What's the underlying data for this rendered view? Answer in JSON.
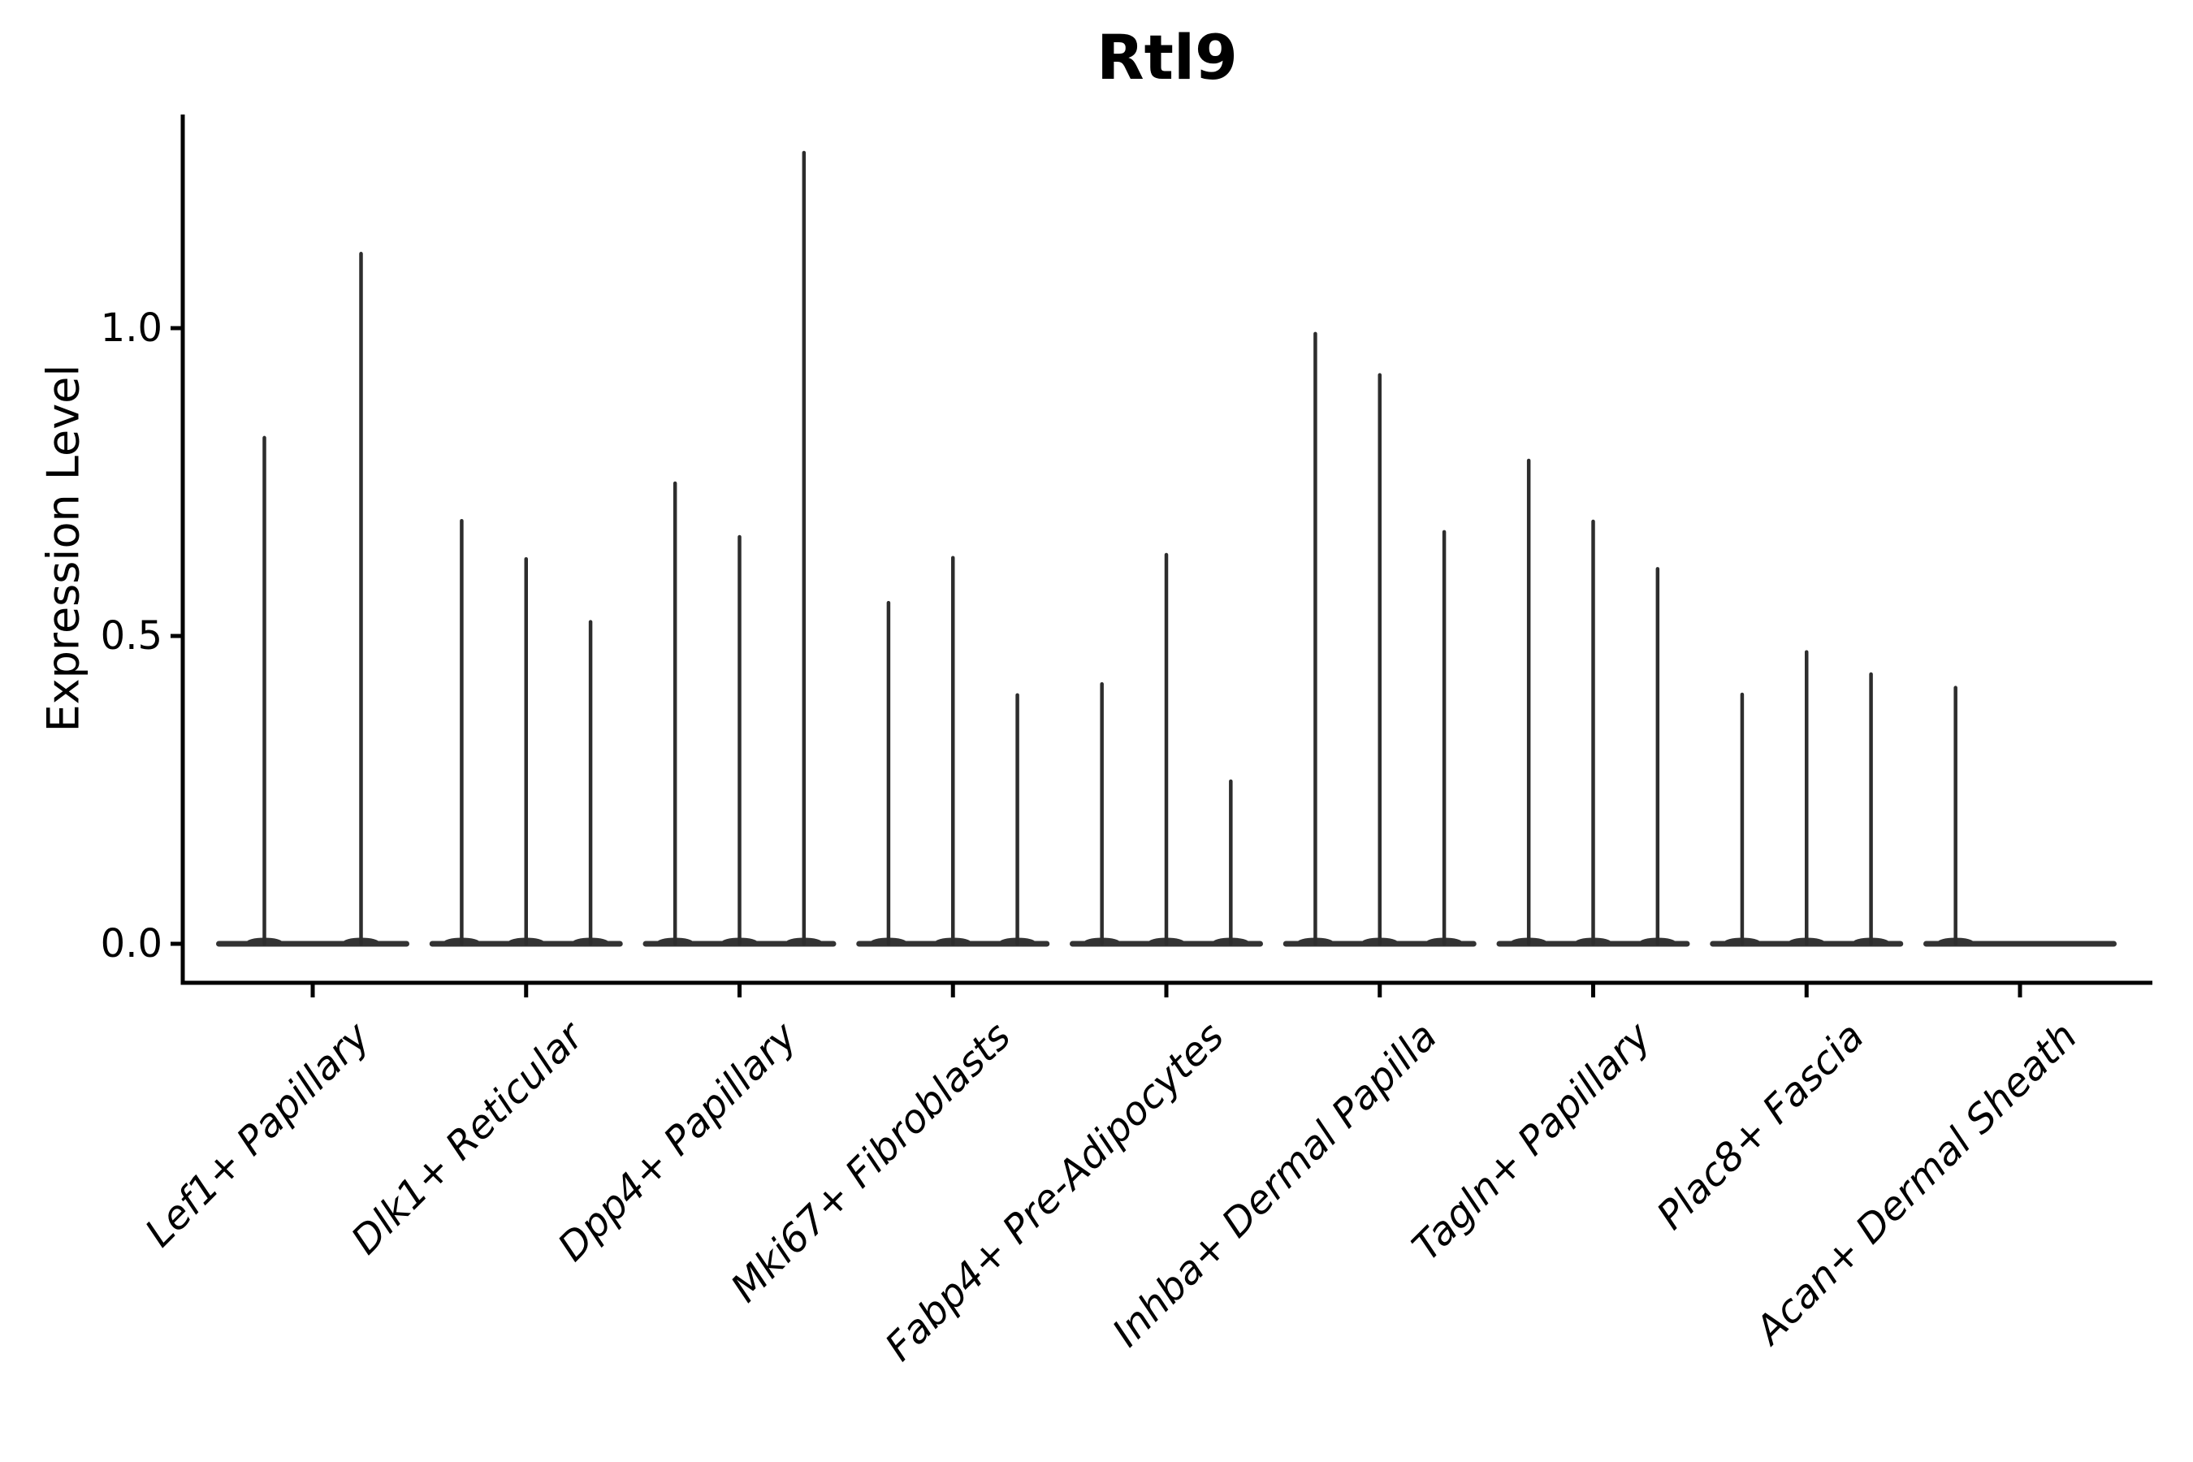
{
  "title": "Rtl9",
  "y_axis": {
    "label": "Expression Level",
    "tick_labels": [
      "0.0",
      "0.5",
      "1.0"
    ]
  },
  "x_axis": {
    "label": "",
    "category_labels_style": "italic, rotated 45 degrees"
  },
  "colors": {
    "background": "#ffffff",
    "violin": "#333333",
    "spike_stroke": "#2d2d2d",
    "axis": "#000000",
    "text": "#000000"
  },
  "chart_data": {
    "type": "violin",
    "title": "Rtl9",
    "xlabel": "",
    "ylabel": "Expression Level",
    "ylim": [
      -0.063,
      1.347
    ],
    "yticks": [
      0,
      0.5,
      1.0
    ],
    "grid": false,
    "legend": "none",
    "description": "Needle-shaped violins: flat baseline at expression 0 for each category with thin spikes rising to each violin's maximum expression value; 2-3 violins per category, all dark gray.",
    "categories": [
      {
        "label": "Lef1+ Papillary",
        "violin_maxima": [
          0.822,
          1.121
        ]
      },
      {
        "label": "Dlk1+ Reticular",
        "violin_maxima": [
          0.687,
          0.625,
          0.523
        ]
      },
      {
        "label": "Dpp4+ Papillary",
        "violin_maxima": [
          0.748,
          0.661,
          1.285
        ]
      },
      {
        "label": "Mki67+ Fibroblasts",
        "violin_maxima": [
          0.554,
          0.627,
          0.404
        ]
      },
      {
        "label": "Fabp4+ Pre-Adipocytes",
        "violin_maxima": [
          0.422,
          0.632,
          0.264
        ]
      },
      {
        "label": "Inhba+ Dermal Papilla",
        "violin_maxima": [
          0.991,
          0.924,
          0.669
        ]
      },
      {
        "label": "Tagln+ Papillary",
        "violin_maxima": [
          0.785,
          0.686,
          0.609
        ]
      },
      {
        "label": "Plac8+ Fascia",
        "violin_maxima": [
          0.405,
          0.474,
          0.438
        ]
      },
      {
        "label": "Acan+ Dermal Sheath",
        "violin_maxima": [
          0.416,
          0,
          0
        ]
      }
    ]
  }
}
